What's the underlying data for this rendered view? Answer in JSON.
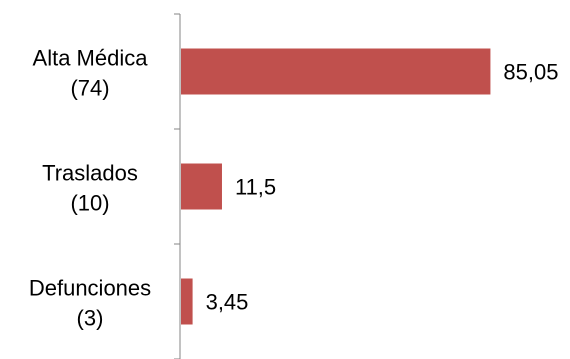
{
  "chart_data": {
    "type": "bar",
    "orientation": "horizontal",
    "categories": [
      {
        "name": "Alta Médica",
        "count": "(74)"
      },
      {
        "name": "Traslados",
        "count": "(10)"
      },
      {
        "name": "Defunciones",
        "count": "(3)"
      }
    ],
    "values": [
      85.05,
      11.5,
      3.45
    ],
    "value_labels": [
      "85,05",
      "11,5",
      "3,45"
    ],
    "title": "",
    "xlabel": "",
    "ylabel": "",
    "xlim": [
      0,
      100
    ],
    "grid": false,
    "legend": "none",
    "bar_color": "#c0504d"
  }
}
